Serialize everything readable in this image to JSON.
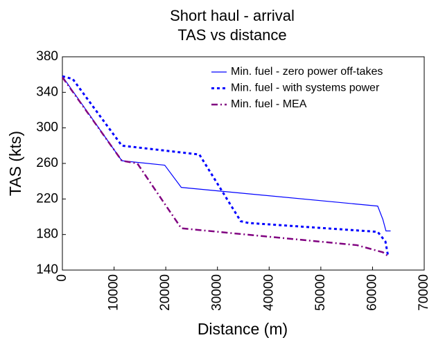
{
  "chart_data": {
    "type": "line",
    "title": "Short haul - arrival",
    "subtitle": "TAS vs distance",
    "x_label": "Distance (m)",
    "y_label": "TAS (kts)",
    "xlim": [
      0,
      70000
    ],
    "xticks": [
      0,
      10000,
      20000,
      30000,
      40000,
      50000,
      60000,
      70000
    ],
    "ylim": [
      140,
      380
    ],
    "yticks": [
      140,
      180,
      220,
      260,
      300,
      340,
      380
    ],
    "legend": "upper right",
    "series": [
      {
        "name": "Min. fuel - zero power off-takes",
        "color": "#0000ff",
        "linestyle": "solid",
        "x": [
          0,
          11500,
          19800,
          23000,
          61000,
          62000,
          62600,
          63500
        ],
        "values": [
          358,
          263,
          258,
          233,
          212,
          197,
          184,
          184
        ]
      },
      {
        "name": "Min. fuel - with systems power",
        "color": "#0000ff",
        "linestyle": "dotted",
        "x": [
          0,
          2000,
          11500,
          26500,
          34500,
          36000,
          61000,
          62500,
          63000
        ],
        "values": [
          358,
          355,
          280,
          270,
          195,
          193,
          183,
          172,
          156
        ]
      },
      {
        "name": "Min. fuel - MEA",
        "color": "#800080",
        "linestyle": "dashdot",
        "x": [
          0,
          11500,
          14500,
          23000,
          57000,
          62000,
          63200
        ],
        "values": [
          357,
          263,
          260,
          187,
          168,
          160,
          155
        ]
      }
    ]
  }
}
